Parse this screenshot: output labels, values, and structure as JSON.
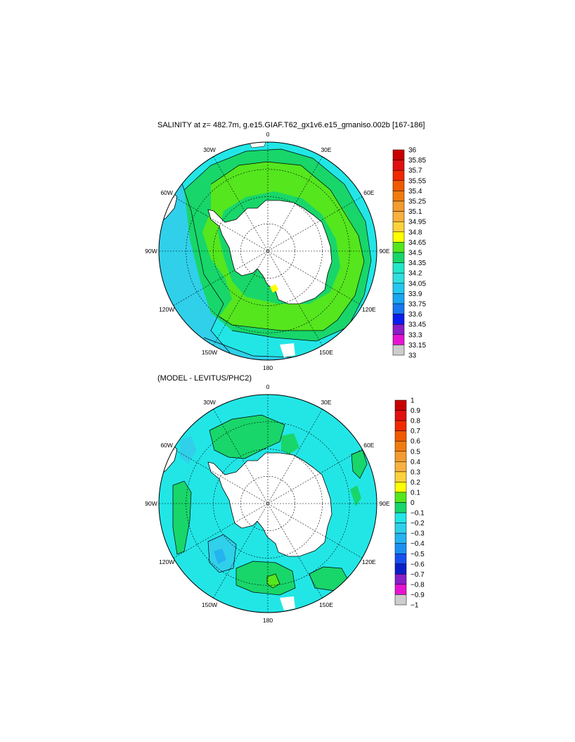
{
  "panel1": {
    "title": "SALINITY at z= 482.7m, g.e15.GIAF.T62_gx1v6.e15_gmaniso.002b [167-186]",
    "lon_labels": [
      "0",
      "30E",
      "60E",
      "90E",
      "120E",
      "150E",
      "180",
      "150W",
      "120W",
      "90W",
      "60W",
      "30W"
    ],
    "colorbar": {
      "labels": [
        "36",
        "35.85",
        "35.7",
        "35.55",
        "35.4",
        "35.25",
        "35.1",
        "34.95",
        "34.8",
        "34.65",
        "34.5",
        "34.35",
        "34.2",
        "34.05",
        "33.9",
        "33.75",
        "33.6",
        "33.45",
        "33.3",
        "33.15",
        "33"
      ],
      "colors": [
        "#c80000",
        "#e01010",
        "#f02a00",
        "#f05a00",
        "#f07c10",
        "#f39a30",
        "#f8b040",
        "#fcd23c",
        "#ffff00",
        "#55e61e",
        "#18d66a",
        "#22e6c8",
        "#30dede",
        "#24c8f0",
        "#1aa6f2",
        "#1878f0",
        "#0a1ef0",
        "#8a1ec8",
        "#e614d2",
        "#cdcdcd",
        "#6e6e6e"
      ]
    }
  },
  "panel2": {
    "title": "(MODEL - LEVITUS/PHC2)",
    "lon_labels": [
      "0",
      "30E",
      "60E",
      "90E",
      "120E",
      "150E",
      "180",
      "150W",
      "120W",
      "90W",
      "60W",
      "30W"
    ],
    "colorbar": {
      "labels": [
        "1",
        "0.9",
        "0.8",
        "0.7",
        "0.6",
        "0.5",
        "0.4",
        "0.3",
        "0.2",
        "0.1",
        "0",
        "−0.1",
        "−0.2",
        "−0.3",
        "−0.4",
        "−0.5",
        "−0.6",
        "−0.7",
        "−0.8",
        "−0.9",
        "−1"
      ],
      "colors": [
        "#c80000",
        "#e01010",
        "#f02a00",
        "#f05a00",
        "#f07c10",
        "#f39a30",
        "#f8b040",
        "#fcd23c",
        "#ffff00",
        "#55e61e",
        "#18d66a",
        "#22e6e6",
        "#30d0ea",
        "#24b4f0",
        "#1a90f2",
        "#1850f0",
        "#0a1ec8",
        "#8a1ec8",
        "#e614d2",
        "#cdcdcd",
        "#6e6e6e"
      ]
    }
  },
  "colors": {
    "land": "#ffffff",
    "coast": "#000000",
    "grid": "#000000"
  }
}
